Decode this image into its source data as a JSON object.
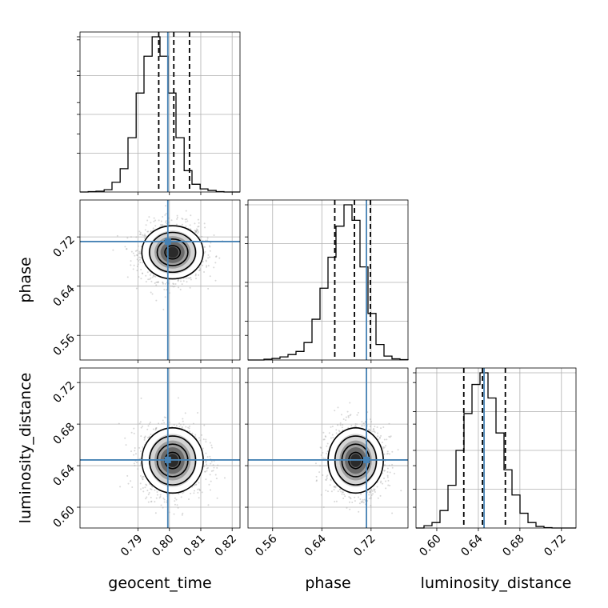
{
  "chart_data": {
    "type": "corner",
    "parameters": [
      {
        "key": "geocent_time",
        "label": "geocent_time",
        "range": [
          0.7715,
          0.8225
        ],
        "ticks": [
          0.79,
          0.8,
          0.81,
          0.82
        ],
        "tick_labels": [
          "0.79",
          "0.80",
          "0.81",
          "0.82"
        ],
        "truth": 0.7995,
        "quantiles": [
          0.7966,
          0.8014,
          0.8064
        ],
        "mean": 0.801,
        "sd": 0.0048
      },
      {
        "key": "phase",
        "label": "phase",
        "range": [
          0.52,
          0.78
        ],
        "ticks": [
          0.56,
          0.64,
          0.72
        ],
        "tick_labels": [
          "0.56",
          "0.64",
          "0.72"
        ],
        "truth": 0.7125,
        "quantiles": [
          0.661,
          0.693,
          0.719
        ],
        "mean": 0.695,
        "sd": 0.022
      },
      {
        "key": "luminosity_distance",
        "label": "luminosity_distance",
        "range": [
          0.58,
          0.734
        ],
        "ticks": [
          0.6,
          0.64,
          0.68,
          0.72
        ],
        "tick_labels": [
          "0.60",
          "0.64",
          "0.68",
          "0.72"
        ],
        "truth": 0.6455,
        "quantiles": [
          0.626,
          0.644,
          0.666
        ],
        "mean": 0.645,
        "sd": 0.016
      }
    ],
    "histograms": [
      {
        "parameter": "geocent_time",
        "bin_edges": [
          0.7715,
          0.7741,
          0.7766,
          0.7792,
          0.7817,
          0.7843,
          0.7868,
          0.7894,
          0.7919,
          0.7945,
          0.797,
          0.7996,
          0.8021,
          0.8047,
          0.8072,
          0.8098,
          0.8123,
          0.8149,
          0.8174,
          0.82,
          0.8225
        ],
        "counts": [
          0,
          1,
          2,
          6,
          25,
          60,
          140,
          255,
          350,
          400,
          350,
          255,
          140,
          55,
          20,
          8,
          4,
          1,
          0,
          0
        ]
      },
      {
        "parameter": "phase",
        "bin_edges": [
          0.52,
          0.533,
          0.546,
          0.559,
          0.572,
          0.585,
          0.598,
          0.611,
          0.624,
          0.637,
          0.65,
          0.663,
          0.676,
          0.689,
          0.702,
          0.715,
          0.728,
          0.741,
          0.754,
          0.767,
          0.78
        ],
        "counts": [
          0,
          0,
          2,
          4,
          8,
          14,
          22,
          45,
          105,
          185,
          265,
          345,
          400,
          360,
          240,
          120,
          40,
          10,
          3,
          1
        ]
      },
      {
        "parameter": "luminosity_distance",
        "bin_edges": [
          0.58,
          0.5877,
          0.5954,
          0.6031,
          0.6108,
          0.6185,
          0.6262,
          0.6339,
          0.6416,
          0.6493,
          0.657,
          0.6647,
          0.6724,
          0.6801,
          0.6878,
          0.6955,
          0.7032,
          0.7109,
          0.7186,
          0.7263,
          0.734
        ],
        "counts": [
          0,
          6,
          14,
          45,
          110,
          200,
          295,
          370,
          400,
          335,
          245,
          150,
          85,
          38,
          14,
          4,
          1,
          0,
          0,
          0
        ]
      }
    ],
    "grid": true,
    "truth_color": "#4682b4",
    "quantile_line_style": "dashed",
    "sample_color": "#9e9e9e",
    "contour_color": "#000000"
  }
}
